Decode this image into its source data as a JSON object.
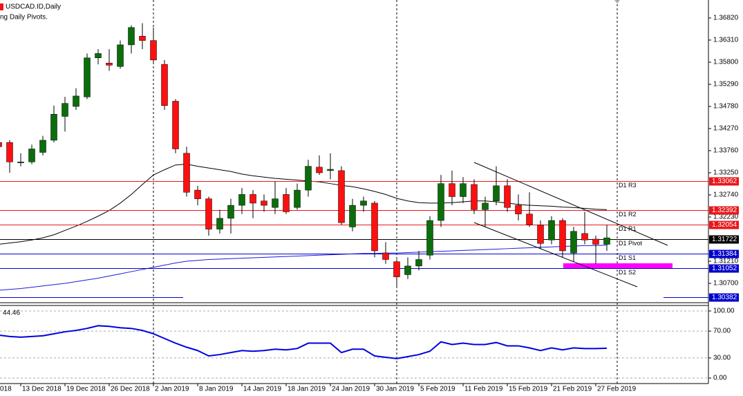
{
  "chart_data": [
    {
      "type": "candlestick",
      "title": "USDCAD.ID,Daily",
      "subtitle": "ng Daily Pivots.",
      "categories": [
        "018",
        null,
        "13 Dec 2018",
        null,
        null,
        null,
        "19 Dec 2018",
        null,
        null,
        null,
        "26 Dec 2018",
        null,
        null,
        null,
        "2 Jan 2019",
        null,
        null,
        null,
        "8 Jan 2019",
        null,
        null,
        null,
        "14 Jan 2019",
        null,
        null,
        null,
        "18 Jan 2019",
        null,
        null,
        null,
        "24 Jan 2019",
        null,
        null,
        null,
        "30 Jan 2019",
        null,
        null,
        null,
        "5 Feb 2019",
        null,
        null,
        null,
        "11 Feb 2019",
        null,
        null,
        null,
        "15 Feb 2019",
        null,
        null,
        null,
        "21 Feb 2019",
        null,
        null,
        null,
        "27 Feb 2019",
        null
      ],
      "open": [
        1.3395,
        1.3395,
        1.3348,
        1.335,
        1.3372,
        1.34,
        1.3455,
        1.3478,
        1.35,
        1.359,
        1.3578,
        1.357,
        1.362,
        1.364,
        1.363,
        1.3575,
        1.349,
        1.337,
        1.3285,
        1.3265,
        1.3195,
        1.322,
        1.325,
        1.3275,
        1.326,
        1.3245,
        1.3275,
        1.3245,
        1.3285,
        1.3338,
        1.333,
        1.333,
        1.32,
        1.325,
        1.3255,
        1.314,
        1.312,
        1.309,
        1.311,
        1.3135,
        1.3215,
        1.33,
        1.327,
        1.3298,
        1.324,
        1.326,
        1.3295,
        1.325,
        1.323,
        1.3205,
        1.317,
        1.3215,
        1.314,
        1.3185,
        1.3172,
        1.316
      ],
      "high": [
        1.34,
        1.34,
        1.337,
        1.339,
        1.341,
        1.348,
        1.35,
        1.352,
        1.36,
        1.361,
        1.361,
        1.363,
        1.3665,
        1.367,
        1.366,
        1.3585,
        1.3495,
        1.3385,
        1.3295,
        1.327,
        1.324,
        1.3265,
        1.329,
        1.3285,
        1.3275,
        1.3305,
        1.329,
        1.33,
        1.3355,
        1.3365,
        1.337,
        1.334,
        1.3265,
        1.327,
        1.326,
        1.3165,
        1.3125,
        1.313,
        1.3145,
        1.3225,
        1.332,
        1.333,
        1.3315,
        1.331,
        1.327,
        1.334,
        1.331,
        1.3275,
        1.328,
        1.3215,
        1.3225,
        1.322,
        1.32,
        1.3235,
        1.318,
        1.3205
      ],
      "low": [
        1.338,
        1.3325,
        1.334,
        1.3345,
        1.3365,
        1.3395,
        1.342,
        1.347,
        1.3495,
        1.3575,
        1.356,
        1.3565,
        1.36,
        1.361,
        1.358,
        1.347,
        1.337,
        1.327,
        1.325,
        1.318,
        1.3185,
        1.3185,
        1.323,
        1.322,
        1.3235,
        1.323,
        1.323,
        1.324,
        1.327,
        1.332,
        1.331,
        1.3205,
        1.319,
        1.3235,
        1.313,
        1.3115,
        1.306,
        1.308,
        1.31,
        1.3125,
        1.32,
        1.325,
        1.3255,
        1.323,
        1.32,
        1.325,
        1.3235,
        1.3215,
        1.32,
        1.315,
        1.316,
        1.313,
        1.312,
        1.316,
        1.3115,
        1.3145
      ],
      "close": [
        1.3385,
        1.335,
        1.335,
        1.338,
        1.34,
        1.346,
        1.3485,
        1.3502,
        1.359,
        1.36,
        1.3573,
        1.362,
        1.366,
        1.363,
        1.3585,
        1.348,
        1.338,
        1.328,
        1.3265,
        1.3195,
        1.322,
        1.325,
        1.3275,
        1.3255,
        1.325,
        1.3265,
        1.3235,
        1.3285,
        1.334,
        1.3325,
        1.3333,
        1.321,
        1.325,
        1.326,
        1.3145,
        1.3125,
        1.3085,
        1.311,
        1.3125,
        1.3215,
        1.33,
        1.327,
        1.33,
        1.324,
        1.3255,
        1.3295,
        1.3245,
        1.323,
        1.3205,
        1.3162,
        1.3215,
        1.3145,
        1.319,
        1.317,
        1.316,
        1.3175
      ],
      "up_color": "#0b6e0b",
      "down_color": "#ff1010",
      "series": [
        {
          "color": "#000000",
          "values": [
            1.316,
            1.3163,
            1.3166,
            1.317,
            1.3175,
            1.3182,
            1.3192,
            1.3202,
            1.3213,
            1.3225,
            1.3238,
            1.3255,
            1.3275,
            1.3298,
            1.332,
            1.3332,
            1.3343,
            1.3345,
            1.334,
            1.3336,
            1.3332,
            1.3328,
            1.3322,
            1.3318,
            1.3315,
            1.3312,
            1.331,
            1.3308,
            1.3306,
            1.3304,
            1.33,
            1.3296,
            1.3293,
            1.3288,
            1.3282,
            1.3275,
            1.3266,
            1.326,
            1.3256,
            1.3255,
            1.3255,
            1.3256,
            1.3258,
            1.326,
            1.326,
            1.3258,
            1.3255,
            1.3252,
            1.325,
            1.3249,
            1.3248,
            1.3246,
            1.3245,
            1.3243,
            1.3241,
            1.324
          ]
        },
        {
          "color": "#1a1adb",
          "values": [
            1.3054,
            1.3056,
            1.3058,
            1.3061,
            1.3064,
            1.3067,
            1.307,
            1.3074,
            1.3078,
            1.3082,
            1.3087,
            1.3092,
            1.3097,
            1.3102,
            1.3107,
            1.3112,
            1.3117,
            1.3121,
            1.3123,
            1.3125,
            1.3126,
            1.3127,
            1.3128,
            1.3129,
            1.313,
            1.3131,
            1.3132,
            1.3133,
            1.3134,
            1.3135,
            1.3136,
            1.3137,
            1.3138,
            1.3139,
            1.3139,
            1.314,
            1.314,
            1.3141,
            1.3142,
            1.3143,
            1.3144,
            1.3145,
            1.3146,
            1.3147,
            1.3148,
            1.3149,
            1.315,
            1.3151,
            1.3152,
            1.3153,
            1.3154,
            1.3155,
            1.3156,
            1.3157,
            1.3157,
            1.3158
          ]
        }
      ],
      "levels": [
        {
          "label": "D1 R3",
          "value": 1.33062,
          "color": "#e8171b"
        },
        {
          "label": "D1 R2",
          "value": 1.32392,
          "color": "#e8171b"
        },
        {
          "label": "D1 R1",
          "value": 1.32054,
          "color": "#e8171b"
        },
        {
          "label": "D1 Pivot",
          "value": 1.31722,
          "color": "#000000"
        },
        {
          "label": "D1 S1",
          "value": 1.31384,
          "color": "#0000cd"
        },
        {
          "label": "D1 S2",
          "value": 1.31052,
          "color": "#0000cd"
        },
        {
          "value": 1.30382,
          "color": "#0000cd"
        }
      ],
      "ylim": [
        1.30254,
        1.37234
      ],
      "yticks": [
        {
          "value": 1.3682,
          "label": "1.36820"
        },
        {
          "value": 1.3631,
          "label": "1.36310"
        },
        {
          "value": 1.358,
          "label": "1.35800"
        },
        {
          "value": 1.3529,
          "label": "1.35290"
        },
        {
          "value": 1.3478,
          "label": "1.34780"
        },
        {
          "value": 1.3427,
          "label": "1.34270"
        },
        {
          "value": 1.3376,
          "label": "1.33760"
        },
        {
          "value": 1.3325,
          "label": "1.33250"
        },
        {
          "value": 1.3274,
          "label": "1.32740"
        },
        {
          "value": 1.3223,
          "label": "1.32230"
        },
        {
          "value": 1.3121,
          "label": "1.31210"
        },
        {
          "value": 1.307,
          "label": "1.30700"
        }
      ],
      "grid": false
    },
    {
      "type": "line",
      "series": [
        {
          "color": "#0000e0",
          "values": [
            64,
            62,
            61,
            62,
            63,
            66,
            69,
            71,
            74,
            78,
            77,
            75,
            74,
            71,
            66,
            59,
            52,
            46,
            41,
            33,
            35,
            38,
            41,
            40,
            41,
            43,
            42,
            44,
            52,
            52,
            52,
            38,
            43,
            43,
            33,
            31,
            29,
            32,
            35,
            40,
            54,
            50,
            52,
            50,
            50,
            53,
            48,
            48,
            45,
            41,
            45,
            42,
            45,
            44,
            44,
            44.46
          ]
        }
      ],
      "ylim": [
        -8.2,
        108.2
      ],
      "yticks": [
        {
          "value": 100,
          "label": "100.00"
        },
        {
          "value": 70,
          "label": "70.00"
        },
        {
          "value": 30,
          "label": "30.00"
        },
        {
          "value": 0,
          "label": "0.00"
        }
      ],
      "grid": true
    }
  ]
}
